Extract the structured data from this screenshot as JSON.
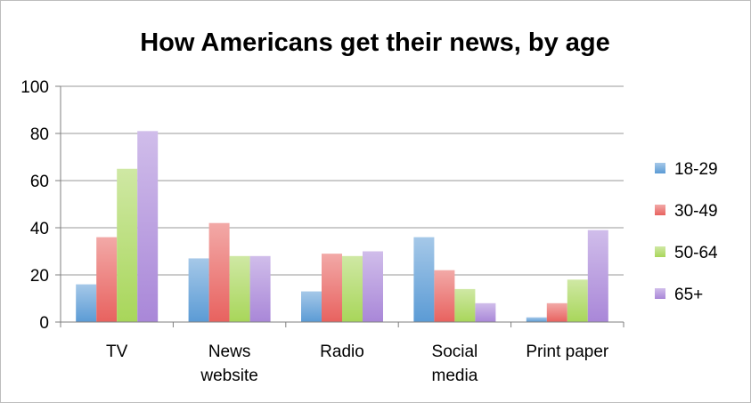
{
  "chart_data": {
    "type": "bar",
    "title": "How Americans get their news, by age",
    "xlabel": "",
    "ylabel": "",
    "ylim": [
      0,
      100
    ],
    "yticks": [
      0,
      20,
      40,
      60,
      80,
      100
    ],
    "grid": true,
    "legend_position": "right",
    "categories": [
      [
        "TV"
      ],
      [
        "News",
        "website"
      ],
      [
        "Radio"
      ],
      [
        "Social",
        "media"
      ],
      [
        "Print paper"
      ]
    ],
    "series": [
      {
        "name": "18-29",
        "color": "#5b9bd5",
        "values": [
          16,
          27,
          13,
          36,
          2
        ]
      },
      {
        "name": "30-49",
        "color": "#e8625f",
        "values": [
          36,
          42,
          29,
          22,
          8
        ]
      },
      {
        "name": "50-64",
        "color": "#a8d65a",
        "values": [
          65,
          28,
          28,
          14,
          18
        ]
      },
      {
        "name": "65+",
        "color": "#a987d8",
        "values": [
          81,
          28,
          30,
          8,
          39
        ]
      }
    ]
  }
}
